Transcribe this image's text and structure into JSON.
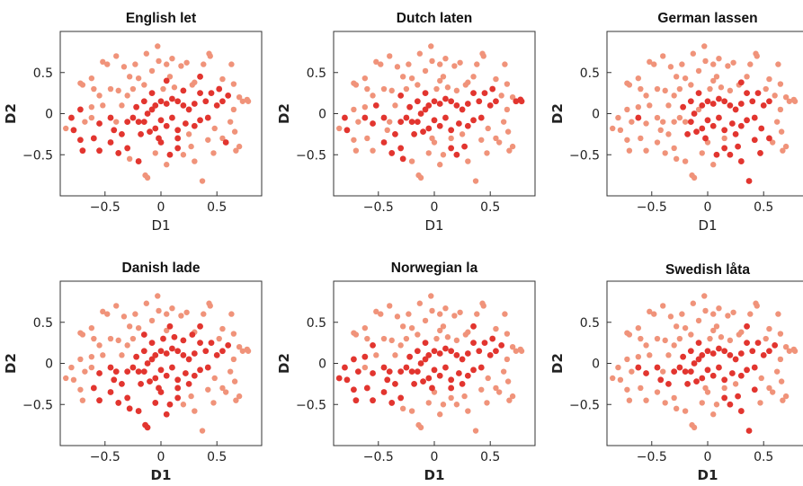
{
  "chart_data": {
    "type": "scatter",
    "colors": {
      "highlight": "#e2352f",
      "base": "#f0937a"
    },
    "xlim": [
      -0.9,
      0.9
    ],
    "ylim": [
      -1.0,
      1.0
    ],
    "xticks": [
      -0.5,
      0,
      0.5
    ],
    "yticks": [
      0.5,
      0,
      -0.5
    ],
    "xtick_labels": [
      "−0.5",
      "0",
      "0.5"
    ],
    "ytick_labels": [
      "0.5",
      "0",
      "−0.5"
    ],
    "points": [
      [
        -0.72,
        0.37
      ],
      [
        -0.7,
        0.35
      ],
      [
        -0.62,
        0.43
      ],
      [
        -0.52,
        0.63
      ],
      [
        -0.48,
        0.6
      ],
      [
        -0.4,
        0.7
      ],
      [
        -0.33,
        0.57
      ],
      [
        -0.23,
        0.6
      ],
      [
        -0.2,
        0.43
      ],
      [
        -0.13,
        0.73
      ],
      [
        -0.08,
        0.52
      ],
      [
        -0.03,
        0.82
      ],
      [
        -0.02,
        0.64
      ],
      [
        0.05,
        0.6
      ],
      [
        0.1,
        0.67
      ],
      [
        0.18,
        0.58
      ],
      [
        0.23,
        0.62
      ],
      [
        0.3,
        0.38
      ],
      [
        0.38,
        0.6
      ],
      [
        0.43,
        0.73
      ],
      [
        0.44,
        0.7
      ],
      [
        0.55,
        0.42
      ],
      [
        0.63,
        0.6
      ],
      [
        0.65,
        0.36
      ],
      [
        0.7,
        0.2
      ],
      [
        0.73,
        0.15
      ],
      [
        0.77,
        0.17
      ],
      [
        0.78,
        0.15
      ],
      [
        0.65,
        0.05
      ],
      [
        0.62,
        -0.1
      ],
      [
        0.66,
        -0.22
      ],
      [
        0.7,
        -0.4
      ],
      [
        0.67,
        -0.45
      ],
      [
        0.55,
        -0.3
      ],
      [
        0.48,
        -0.18
      ],
      [
        0.47,
        -0.48
      ],
      [
        0.42,
        -0.32
      ],
      [
        0.37,
        -0.82
      ],
      [
        0.3,
        -0.58
      ],
      [
        0.27,
        -0.4
      ],
      [
        0.2,
        -0.5
      ],
      [
        0.15,
        -0.42
      ],
      [
        0.08,
        -0.5
      ],
      [
        0.05,
        -0.62
      ],
      [
        0.0,
        -0.35
      ],
      [
        -0.05,
        -0.48
      ],
      [
        -0.12,
        -0.78
      ],
      [
        -0.14,
        -0.75
      ],
      [
        -0.2,
        -0.58
      ],
      [
        -0.28,
        -0.55
      ],
      [
        -0.3,
        -0.42
      ],
      [
        -0.38,
        -0.48
      ],
      [
        -0.45,
        -0.35
      ],
      [
        -0.55,
        -0.45
      ],
      [
        -0.6,
        -0.3
      ],
      [
        -0.7,
        -0.45
      ],
      [
        -0.72,
        -0.32
      ],
      [
        -0.78,
        -0.2
      ],
      [
        -0.85,
        -0.18
      ],
      [
        -0.68,
        -0.1
      ],
      [
        -0.72,
        0.05
      ],
      [
        -0.62,
        0.08
      ],
      [
        -0.55,
        0.22
      ],
      [
        -0.6,
        0.3
      ],
      [
        -0.45,
        0.3
      ],
      [
        -0.38,
        0.28
      ],
      [
        -0.3,
        0.22
      ],
      [
        -0.28,
        0.45
      ],
      [
        -0.52,
        0.1
      ],
      [
        -0.45,
        -0.05
      ],
      [
        -0.42,
        -0.2
      ],
      [
        -0.55,
        -0.12
      ],
      [
        -0.35,
        -0.25
      ],
      [
        -0.3,
        -0.1
      ],
      [
        -0.25,
        -0.05
      ],
      [
        -0.2,
        -0.1
      ],
      [
        -0.15,
        -0.1
      ],
      [
        -0.12,
        0.0
      ],
      [
        -0.08,
        0.05
      ],
      [
        -0.05,
        0.1
      ],
      [
        0.0,
        0.15
      ],
      [
        0.05,
        0.12
      ],
      [
        0.1,
        0.18
      ],
      [
        0.15,
        0.15
      ],
      [
        0.2,
        0.1
      ],
      [
        0.25,
        0.05
      ],
      [
        0.3,
        0.12
      ],
      [
        0.35,
        0.25
      ],
      [
        0.4,
        0.15
      ],
      [
        0.45,
        0.25
      ],
      [
        0.5,
        0.1
      ],
      [
        0.55,
        0.15
      ],
      [
        0.42,
        -0.05
      ],
      [
        0.35,
        -0.08
      ],
      [
        0.3,
        -0.15
      ],
      [
        0.22,
        -0.12
      ],
      [
        0.15,
        -0.2
      ],
      [
        0.1,
        -0.05
      ],
      [
        0.05,
        -0.15
      ],
      [
        0.0,
        -0.08
      ],
      [
        -0.05,
        -0.18
      ],
      [
        -0.1,
        -0.22
      ],
      [
        -0.18,
        -0.25
      ],
      [
        -0.22,
        0.08
      ],
      [
        -0.15,
        0.15
      ],
      [
        -0.08,
        0.25
      ],
      [
        0.02,
        0.3
      ],
      [
        0.12,
        0.32
      ],
      [
        0.2,
        0.28
      ],
      [
        0.28,
        0.35
      ],
      [
        0.08,
        0.45
      ],
      [
        -0.15,
        0.35
      ],
      [
        -0.35,
        0.1
      ],
      [
        -0.62,
        -0.05
      ],
      [
        -0.8,
        -0.05
      ],
      [
        0.52,
        0.3
      ],
      [
        0.6,
        0.22
      ],
      [
        0.35,
        0.45
      ],
      [
        0.15,
        -0.3
      ],
      [
        -0.02,
        -0.3
      ],
      [
        -0.4,
        -0.1
      ],
      [
        0.25,
        -0.25
      ],
      [
        -0.25,
        0.3
      ],
      [
        0.58,
        -0.35
      ],
      [
        0.05,
        0.4
      ]
    ],
    "panels": [
      {
        "title": "English let",
        "xlabel": "D1",
        "ylabel": "D2",
        "label_style": "regular",
        "highlighted": [
          79,
          80,
          81,
          82,
          83,
          84,
          85,
          86,
          87,
          88,
          89,
          90,
          91,
          92,
          93,
          94,
          95,
          96,
          97,
          98,
          99,
          100,
          101,
          102,
          103,
          104,
          105,
          73,
          74,
          75,
          76,
          77,
          78,
          71,
          72,
          69,
          70,
          108,
          114,
          115,
          116,
          117,
          118,
          119,
          123,
          124,
          50,
          51,
          52,
          53,
          54,
          55,
          56,
          57,
          60,
          41,
          42,
          44,
          48
        ]
      },
      {
        "title": "Dutch laten",
        "xlabel": "D1",
        "ylabel": "D2",
        "label_style": "regular",
        "highlighted": [
          79,
          80,
          81,
          82,
          83,
          84,
          85,
          86,
          87,
          88,
          89,
          90,
          91,
          92,
          93,
          94,
          95,
          96,
          97,
          98,
          99,
          100,
          101,
          102,
          103,
          104,
          105,
          73,
          74,
          75,
          76,
          77,
          78,
          71,
          72,
          69,
          25,
          26,
          27,
          66,
          68,
          113,
          39,
          40,
          41,
          49,
          50,
          51,
          52,
          57,
          89,
          90,
          114,
          115
        ]
      },
      {
        "title": "German lassen",
        "xlabel": "D1",
        "ylabel": "D2",
        "label_style": "regular",
        "highlighted": [
          79,
          80,
          81,
          82,
          83,
          84,
          85,
          86,
          87,
          88,
          89,
          90,
          91,
          92,
          93,
          94,
          95,
          96,
          97,
          98,
          99,
          100,
          101,
          102,
          103,
          104,
          105,
          17,
          33,
          34,
          35,
          36,
          37,
          38,
          39,
          40,
          41,
          42,
          113,
          119,
          121,
          125,
          76,
          77
        ]
      },
      {
        "title": "Danish lade",
        "xlabel": "D1",
        "ylabel": "D2",
        "label_style": "bold",
        "highlighted": [
          79,
          80,
          81,
          82,
          83,
          84,
          85,
          86,
          87,
          88,
          89,
          90,
          91,
          92,
          93,
          94,
          95,
          96,
          97,
          98,
          99,
          100,
          101,
          102,
          103,
          104,
          105,
          106,
          107,
          108,
          109,
          110,
          111,
          73,
          74,
          75,
          76,
          77,
          78,
          71,
          72,
          69,
          70,
          44,
          45,
          46,
          47,
          48,
          49,
          50,
          51,
          52,
          41,
          42,
          43,
          53,
          54,
          116,
          117,
          118,
          119,
          120,
          121
        ]
      },
      {
        "title": "Norwegian la",
        "xlabel": "D1",
        "ylabel": "D2",
        "label_style": "bold",
        "highlighted": [
          79,
          80,
          81,
          82,
          83,
          84,
          85,
          86,
          87,
          88,
          89,
          90,
          91,
          92,
          93,
          94,
          95,
          96,
          97,
          98,
          99,
          100,
          101,
          102,
          103,
          104,
          105,
          73,
          74,
          75,
          76,
          77,
          78,
          71,
          72,
          69,
          70,
          50,
          51,
          52,
          53,
          54,
          55,
          56,
          57,
          58,
          59,
          60,
          61,
          62,
          114,
          115,
          116,
          117,
          118,
          119,
          120,
          121
        ]
      },
      {
        "title": "Swedish låta",
        "xlabel": "D1",
        "ylabel": "D2",
        "label_style": "bold",
        "highlighted": [
          79,
          80,
          81,
          82,
          83,
          84,
          85,
          86,
          87,
          88,
          89,
          90,
          91,
          92,
          93,
          94,
          95,
          96,
          97,
          98,
          99,
          100,
          101,
          102,
          103,
          104,
          105,
          73,
          74,
          75,
          76,
          77,
          78,
          69,
          70,
          71,
          72,
          36,
          37,
          38,
          39,
          40,
          41,
          113,
          116,
          117
        ]
      }
    ]
  }
}
